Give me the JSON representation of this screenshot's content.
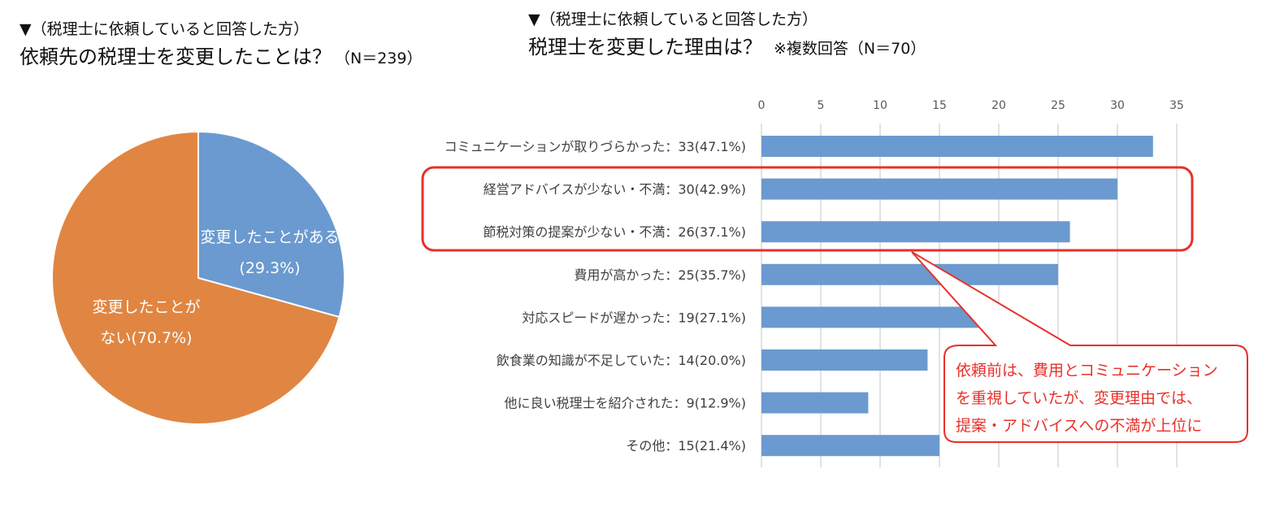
{
  "left": {
    "subtitle": "▼（税理士に依頼していると回答した方）",
    "title": "依頼先の税理士を変更したことは？",
    "n": "（N＝239）"
  },
  "right": {
    "subtitle": "▼（税理士に依頼していると回答した方）",
    "title": "税理士を変更した理由は？",
    "note": "※複数回答（N＝70）"
  },
  "callout": {
    "lines": [
      "依頼前は、費用とコミュニケーション",
      "を重視していたが、変更理由では、",
      "提案・アドバイスへの不満が上位に"
    ],
    "color": "#e8302a"
  },
  "chart_data": [
    {
      "type": "pie",
      "slices": [
        {
          "label_lines": [
            "変更したことがある",
            "(29.3%)"
          ],
          "value": 29.3,
          "color": "#6a9ad0"
        },
        {
          "label_lines": [
            "変更したことが",
            "ない(70.7%)"
          ],
          "value": 70.7,
          "color": "#e08642"
        }
      ]
    },
    {
      "type": "bar",
      "orientation": "horizontal",
      "categories": [
        "コミュニケーションが取りづらかった：33(47.1%)",
        "経営アドバイスが少ない・不満：30(42.9%)",
        "節税対策の提案が少ない・不満：26(37.1%)",
        "費用が高かった：25(35.7%)",
        "対応スピードが遅かった：19(27.1%)",
        "飲食業の知識が不足していた：14(20.0%)",
        "他に良い税理士を紹介された：9(12.9%)",
        "その他：15(21.4%)"
      ],
      "values": [
        33,
        30,
        26,
        25,
        19,
        14,
        9,
        15
      ],
      "xlim": [
        0,
        35
      ],
      "xticks": [
        "0",
        "5",
        "10",
        "15",
        "20",
        "25",
        "30",
        "35"
      ],
      "axis_position": "top",
      "grid": true,
      "bar_color": "#6a9ad0",
      "highlighted_categories": [
        1,
        2
      ]
    }
  ]
}
